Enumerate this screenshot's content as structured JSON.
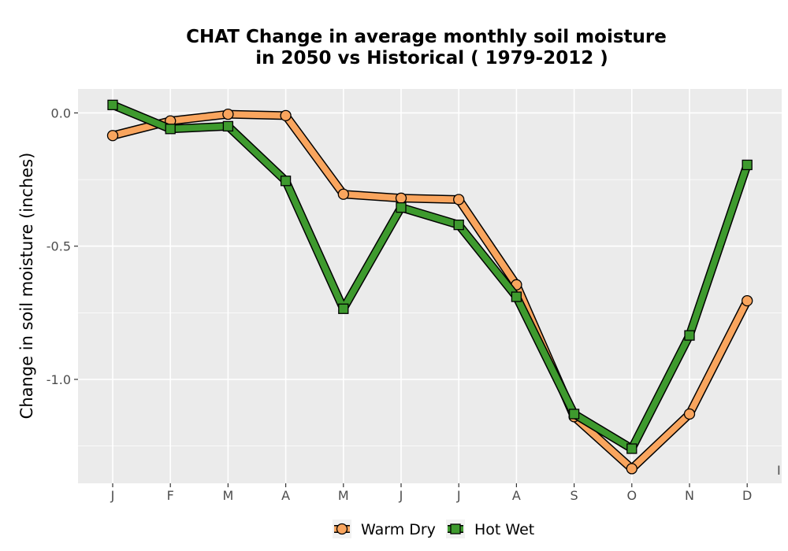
{
  "chart_data": {
    "type": "line",
    "title_lines": [
      "CHAT  Change in average monthly soil moisture",
      "in 2050 vs Historical ( 1979-2012 )"
    ],
    "xlabel": "",
    "ylabel": "Change in soil moisture (inches)",
    "categories": [
      "J",
      "F",
      "M",
      "A",
      "M",
      "J",
      "J",
      "A",
      "S",
      "O",
      "N",
      "D"
    ],
    "y_ticks": [
      0.0,
      -0.5,
      -1.0
    ],
    "y_tick_labels": [
      "0.0",
      "-0.5",
      "-1.0"
    ],
    "ylim": [
      -1.39,
      0.09
    ],
    "grid": true,
    "legend_position": "bottom",
    "stray_label": "I",
    "series": [
      {
        "name": "Warm Dry",
        "color": "#f9a55e",
        "marker": "circle",
        "values": [
          -0.085,
          -0.03,
          -0.005,
          -0.01,
          -0.305,
          -0.32,
          -0.325,
          -0.645,
          -1.14,
          -1.335,
          -1.13,
          -0.705
        ]
      },
      {
        "name": "Hot Wet",
        "color": "#3e9a2e",
        "marker": "square",
        "values": [
          0.03,
          -0.06,
          -0.05,
          -0.255,
          -0.735,
          -0.355,
          -0.42,
          -0.69,
          -1.13,
          -1.26,
          -0.835,
          -0.195
        ]
      }
    ]
  }
}
